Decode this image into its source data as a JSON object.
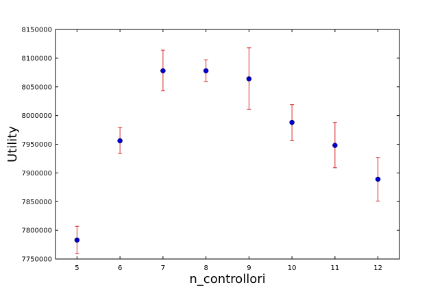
{
  "chart_data": {
    "type": "scatter",
    "title": "",
    "xlabel": "n_controllori",
    "ylabel": "Utility",
    "xlim": [
      4.5,
      12.5
    ],
    "ylim": [
      7750000,
      8150000
    ],
    "x_ticks": [
      5,
      6,
      7,
      8,
      9,
      10,
      11,
      12
    ],
    "y_ticks": [
      7750000,
      7800000,
      7850000,
      7900000,
      7950000,
      8000000,
      8050000,
      8100000,
      8150000
    ],
    "grid": false,
    "marker_color": "#0000cc",
    "errorbar_color": "#d62728",
    "series": [
      {
        "x": [
          5,
          6,
          7,
          8,
          9,
          10,
          11,
          12
        ],
        "y": [
          7783000,
          7956000,
          8078000,
          8078000,
          8064000,
          7988000,
          7948000,
          7889000
        ],
        "err_low": [
          7759000,
          7934000,
          8043000,
          8059000,
          8011000,
          7956000,
          7909000,
          7851000
        ],
        "err_high": [
          7807000,
          7979000,
          8114000,
          8097000,
          8118000,
          8019000,
          7988000,
          7927000
        ]
      }
    ]
  }
}
